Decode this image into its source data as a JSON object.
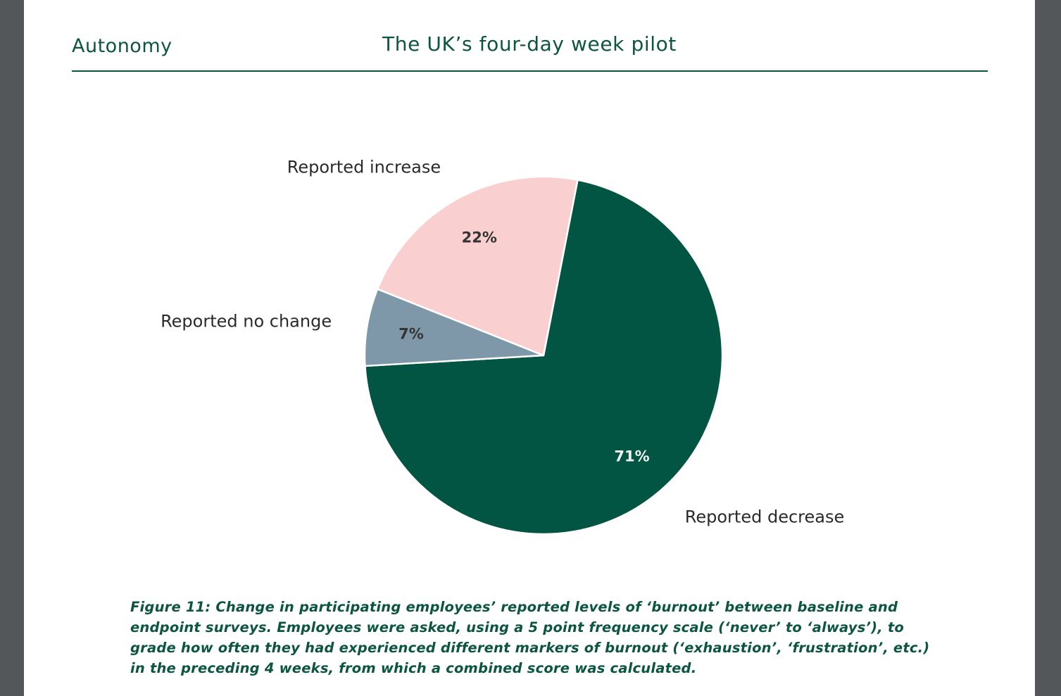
{
  "document": {
    "section": "Autonomy",
    "title": "The UK’s four-day week pilot"
  },
  "colors": {
    "brand_green": "#0c5540",
    "decrease": "#035543",
    "no_change": "#7e98aa",
    "increase": "#f9cfd0",
    "background": "#ffffff",
    "viewer_bg": "#53575a"
  },
  "chart_data": {
    "type": "pie",
    "title": "",
    "slices": [
      {
        "name": "Reported decrease",
        "value": 71,
        "label": "71%",
        "color": "#035543",
        "label_color": "#f2f2f2"
      },
      {
        "name": "Reported no change",
        "value": 7,
        "label": "7%",
        "color": "#7e98aa",
        "label_color": "#333333"
      },
      {
        "name": "Reported increase",
        "value": 22,
        "label": "22%",
        "color": "#f9cfd0",
        "label_color": "#333333"
      }
    ]
  },
  "caption": "Figure 11: Change in participating employees’ reported levels of ‘burnout’ between baseline and endpoint surveys. Employees were asked, using a 5 point frequency scale (‘never’ to ‘always’), to grade how often they had experienced different markers of burnout (‘exhaustion’, ‘frustration’, etc.) in the preceding 4 weeks, from which a combined score was calculated."
}
